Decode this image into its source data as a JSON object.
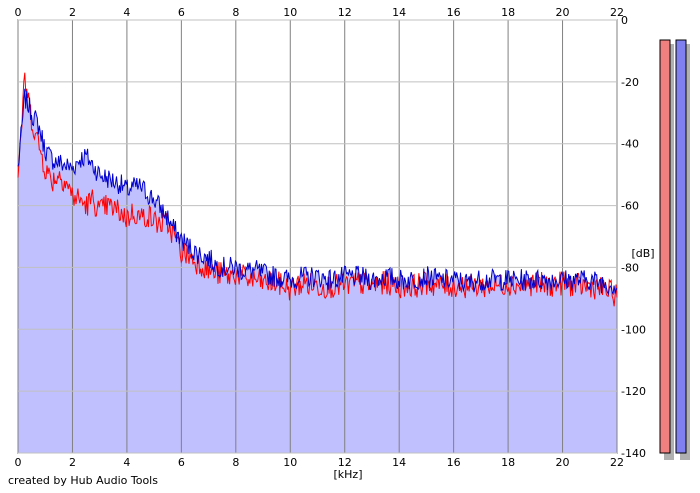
{
  "chart_data": {
    "type": "line",
    "xlabel": "[kHz]",
    "ylabel": "[dB]",
    "xlim": [
      0,
      22
    ],
    "ylim": [
      -140,
      0
    ],
    "x_ticks": [
      0,
      2,
      4,
      6,
      8,
      10,
      12,
      14,
      16,
      18,
      20,
      22
    ],
    "y_ticks": [
      0,
      -20,
      -40,
      -60,
      -80,
      -100,
      -120,
      -140
    ],
    "grid": true,
    "x": [
      0,
      0.25,
      0.5,
      0.75,
      1,
      1.25,
      1.5,
      1.75,
      2,
      2.25,
      2.5,
      2.75,
      3,
      3.25,
      3.5,
      3.75,
      4,
      4.25,
      4.5,
      4.75,
      5,
      5.25,
      5.5,
      5.75,
      6,
      6.25,
      6.5,
      6.75,
      7,
      7.25,
      7.5,
      7.75,
      8,
      8.25,
      8.5,
      8.75,
      9,
      9.5,
      10,
      10.5,
      11,
      11.5,
      12,
      12.5,
      13,
      13.5,
      14,
      14.5,
      15,
      15.5,
      16,
      16.5,
      17,
      17.5,
      18,
      18.5,
      19,
      19.5,
      20,
      20.5,
      21,
      21.5,
      22
    ],
    "series": [
      {
        "color": "#ff0000",
        "values": [
          -50,
          -19,
          -32,
          -40,
          -48,
          -52,
          -50,
          -52,
          -57,
          -58,
          -60,
          -58,
          -62,
          -60,
          -61,
          -62,
          -64,
          -62,
          -64,
          -63,
          -65,
          -66,
          -66,
          -70,
          -75,
          -76,
          -78,
          -79,
          -81,
          -82,
          -82,
          -83,
          -82,
          -83,
          -84,
          -84,
          -85,
          -85,
          -87,
          -85,
          -86,
          -86,
          -86,
          -85,
          -86,
          -85,
          -86,
          -86,
          -85,
          -86,
          -86,
          -86,
          -86,
          -86,
          -85,
          -86,
          -85,
          -86,
          -85,
          -86,
          -86,
          -87,
          -89
        ]
      },
      {
        "color": "#0000cc",
        "values": [
          -48,
          -25,
          -30,
          -34,
          -42,
          -45,
          -46,
          -47,
          -48,
          -45,
          -44,
          -47,
          -50,
          -51,
          -52,
          -53,
          -55,
          -54,
          -54,
          -56,
          -58,
          -61,
          -64,
          -68,
          -71,
          -73,
          -75,
          -76,
          -77,
          -79,
          -80,
          -80,
          -80,
          -81,
          -81,
          -81,
          -82,
          -83,
          -84,
          -83,
          -83,
          -84,
          -83,
          -83,
          -84,
          -83,
          -84,
          -84,
          -83,
          -84,
          -84,
          -85,
          -84,
          -84,
          -84,
          -84,
          -84,
          -84,
          -84,
          -84,
          -84,
          -85,
          -86
        ]
      }
    ],
    "meters": [
      {
        "color": "#f08080",
        "level": 1.0
      },
      {
        "color": "#8080f0",
        "level": 1.0
      }
    ]
  },
  "footer": {
    "credit": "created by Hub Audio Tools"
  }
}
